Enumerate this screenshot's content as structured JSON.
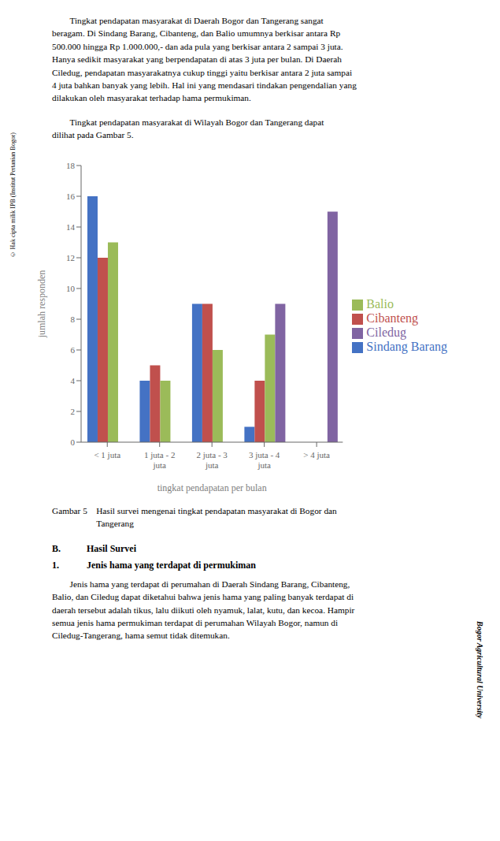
{
  "chart_data": {
    "type": "bar",
    "categories": [
      "< 1 juta",
      "1 juta - 2\njuta",
      "2 juta - 3\njuta",
      "3 juta - 4\njuta",
      "> 4 juta"
    ],
    "series": [
      {
        "name": "Sindang Barang",
        "color": "#4472C4",
        "values": [
          16,
          4,
          9,
          1,
          0
        ]
      },
      {
        "name": "Cibanteng",
        "color": "#C0504D",
        "values": [
          12,
          5,
          9,
          4,
          0
        ]
      },
      {
        "name": "Balio",
        "color": "#9BBB59",
        "values": [
          13,
          4,
          6,
          7,
          0
        ]
      },
      {
        "name": "Ciledug",
        "color": "#8064A2",
        "values": [
          0,
          0,
          0,
          9,
          15
        ]
      }
    ],
    "xlabel": "tingkat pendapatan per bulan",
    "ylabel": "jumlah responden",
    "ylim": [
      0,
      18
    ],
    "yticks": [
      0,
      2,
      4,
      6,
      8,
      10,
      12,
      14,
      16,
      18
    ],
    "grid": false,
    "legend": "right",
    "annotations": [
      "        Tingkat pendapatan masyarakat di Daerah Bogor dan Tangerang sangat\nberagam. Di Sindang Barang, Cibanteng, dan Balio umumnya berkisar antara Rp\n500.000 hingga Rp 1.000.000,- dan ada pula yang berkisar antara 2 sampai 3 juta.\nHanya sedikit masyarakat yang berpendapatan di atas 3 juta per bulan. Di Daerah\nCiledug, pendapatan masyarakatnya cukup tinggi yaitu berkisar antara 2 juta sampai\n4 juta bahkan banyak yang lebih. Hal ini yang mendasari tindakan pengendalian yang\ndilakukan oleh masyarakat terhadap hama permukiman.",
      "        Tingkat pendapatan masyarakat di Wilayah Bogor dan Tangerang dapat\ndilihat pada Gambar 5.",
      "Gambar 5    Hasil survei mengenai tingkat pendapatan masyarakat di Bogor dan\n                    Tangerang",
      "B.",
      "Hasil Survei",
      "1.",
      "Jenis hama yang terdapat di permukiman",
      "        Jenis hama yang terdapat di perumahan di Daerah Sindang Barang, Cibanteng,\nBalio, dan Ciledug dapat diketahui bahwa jenis hama yang paling banyak terdapat di\ndaerah tersebut adalah tikus, lalu diikuti oleh nyamuk, lalat, kutu, dan kecoa. Hampir\nsemua jenis hama permukiman terdapat di perumahan Wilayah Bogor, namun di\nCiledug-Tangerang, hama semut tidak ditemukan.",
      "© Hak cipta milik IPB (Institut Pertanian Bogor)",
      "Bogor Agricultural University"
    ]
  }
}
